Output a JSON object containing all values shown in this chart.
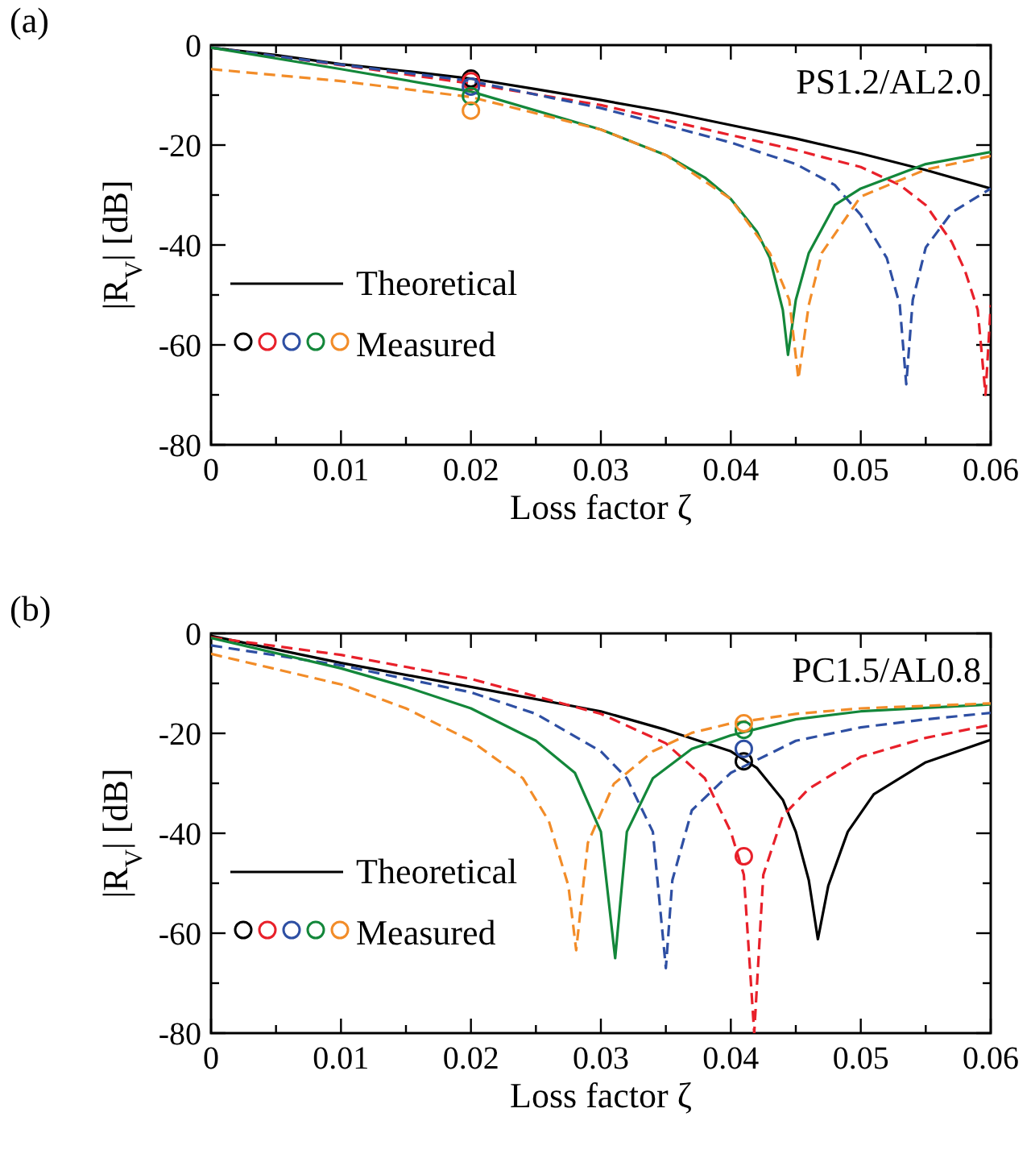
{
  "chart_data": [
    {
      "type": "line",
      "title": "(a)",
      "xlabel": "Loss factor ζ",
      "ylabel": "|R$_{V}$| [dB]",
      "annotations": [
        "PS1.2/AL2.0"
      ],
      "xlim": [
        0,
        0.06
      ],
      "ylim": [
        -80,
        0
      ],
      "xticks": [
        0,
        {
          "value": 0.005,
          "label": null
        },
        0.01,
        {
          "value": 0.015,
          "label": null
        },
        0.02,
        {
          "value": 0.025,
          "label": null
        },
        0.03,
        {
          "value": 0.035,
          "label": null
        },
        0.04,
        {
          "value": 0.045,
          "label": null
        },
        0.05,
        {
          "value": 0.055,
          "label": null
        },
        0.06
      ],
      "yticks": [
        -80,
        {
          "value": -70,
          "label": null
        },
        -60,
        {
          "value": -50,
          "label": null
        },
        -40,
        {
          "value": -30,
          "label": null
        },
        -20,
        {
          "value": -10,
          "label": null
        },
        0
      ],
      "grid": false,
      "legend": "bottom left",
      "series": [
        {
          "name": "Theoretical",
          "line_style": "solid",
          "color": "#000000",
          "x": [
            0,
            0.005,
            0.01,
            0.015,
            0.02,
            0.025,
            0.03,
            0.035,
            0.04,
            0.045,
            0.05,
            0.055,
            0.06
          ],
          "values": [
            -0.5,
            -2,
            -3.8,
            -5.2,
            -6.7,
            -8.8,
            -11,
            -13.3,
            -16,
            -18.7,
            -21.7,
            -25,
            -28.7
          ]
        },
        {
          "line_style": "dashed",
          "color": "#e8202a",
          "x": [
            0,
            0.01,
            0.02,
            0.03,
            0.04,
            0.045,
            0.05,
            0.053,
            0.055,
            0.057,
            0.058,
            0.059,
            0.0596,
            0.06
          ],
          "values": [
            -0.5,
            -4,
            -7.7,
            -12,
            -18,
            -21,
            -24.4,
            -28,
            -32,
            -39.4,
            -45,
            -53,
            -70,
            -52
          ]
        },
        {
          "line_style": "dashed",
          "color": "#2e4fa3",
          "x": [
            0,
            0.01,
            0.02,
            0.03,
            0.04,
            0.045,
            0.048,
            0.05,
            0.052,
            0.053,
            0.0535,
            0.054,
            0.055,
            0.057,
            0.06
          ],
          "values": [
            -0.5,
            -3.9,
            -7.2,
            -12.6,
            -19.5,
            -23.8,
            -28,
            -34,
            -42.6,
            -52,
            -67.9,
            -51,
            -40.5,
            -33.5,
            -28.7
          ]
        },
        {
          "line_style": "solid",
          "color": "#13873a",
          "x": [
            0,
            0.01,
            0.02,
            0.03,
            0.035,
            0.038,
            0.04,
            0.042,
            0.043,
            0.044,
            0.0444,
            0.045,
            0.046,
            0.048,
            0.05,
            0.055,
            0.06
          ],
          "values": [
            -0.5,
            -4.8,
            -9.3,
            -16.9,
            -22,
            -26.5,
            -30.8,
            -37.3,
            -42.6,
            -53,
            -62,
            -51,
            -41.6,
            -32,
            -28.7,
            -23.8,
            -21.4
          ]
        },
        {
          "line_style": "dashed",
          "color": "#f28c28",
          "x": [
            0,
            0.01,
            0.02,
            0.03,
            0.035,
            0.04,
            0.043,
            0.0445,
            0.0452,
            0.046,
            0.047,
            0.05,
            0.055,
            0.06
          ],
          "values": [
            -4.8,
            -7.2,
            -10.4,
            -16.9,
            -22,
            -30.8,
            -41.6,
            -51,
            -66.8,
            -52,
            -41.6,
            -30.3,
            -24.9,
            -22.2
          ]
        },
        {
          "name": "Measured",
          "type": "scatter",
          "marker": "circle",
          "colors": [
            "#000000",
            "#e8202a",
            "#2e4fa3",
            "#13873a",
            "#f28c28"
          ],
          "x": [
            0.02,
            0.02,
            0.02,
            0.02,
            0.02
          ],
          "values": [
            -6.7,
            -7.2,
            -8.3,
            -10.2,
            -13.1
          ]
        }
      ]
    },
    {
      "type": "line",
      "title": "(b)",
      "xlabel": "Loss factor ζ",
      "ylabel": "|R$_{V}$| [dB]",
      "annotations": [
        "PC1.5/AL0.8"
      ],
      "xlim": [
        0,
        0.06
      ],
      "ylim": [
        -80,
        0
      ],
      "xticks": [
        0,
        {
          "value": 0.005,
          "label": null
        },
        0.01,
        {
          "value": 0.015,
          "label": null
        },
        0.02,
        {
          "value": 0.025,
          "label": null
        },
        0.03,
        {
          "value": 0.035,
          "label": null
        },
        0.04,
        {
          "value": 0.045,
          "label": null
        },
        0.05,
        {
          "value": 0.055,
          "label": null
        },
        0.06
      ],
      "yticks": [
        -80,
        {
          "value": -70,
          "label": null
        },
        -60,
        {
          "value": -50,
          "label": null
        },
        -40,
        {
          "value": -30,
          "label": null
        },
        -20,
        {
          "value": -10,
          "label": null
        },
        0
      ],
      "grid": false,
      "legend": "bottom left",
      "series": [
        {
          "name": "Theoretical",
          "line_style": "solid",
          "color": "#000000",
          "x": [
            0,
            0.01,
            0.02,
            0.03,
            0.035,
            0.04,
            0.042,
            0.044,
            0.045,
            0.046,
            0.0467,
            0.0475,
            0.049,
            0.051,
            0.055,
            0.06
          ],
          "values": [
            -0.5,
            -5.9,
            -10.7,
            -15.6,
            -19.3,
            -23.6,
            -26.9,
            -33.3,
            -39.7,
            -49.4,
            -61.2,
            -50.5,
            -39.7,
            -32.2,
            -25.8,
            -21.3
          ]
        },
        {
          "line_style": "dashed",
          "color": "#e8202a",
          "x": [
            0,
            0.01,
            0.02,
            0.03,
            0.035,
            0.038,
            0.04,
            0.041,
            0.0418,
            0.0425,
            0.044,
            0.046,
            0.05,
            0.055,
            0.06
          ],
          "values": [
            -0.8,
            -4.3,
            -9.1,
            -16.1,
            -22,
            -29,
            -39.7,
            -48.3,
            -80,
            -48.3,
            -36.5,
            -31.1,
            -24.7,
            -20.9,
            -18.3
          ]
        },
        {
          "line_style": "dashed",
          "color": "#2e4fa3",
          "x": [
            0,
            0.01,
            0.02,
            0.025,
            0.03,
            0.032,
            0.034,
            0.035,
            0.0355,
            0.037,
            0.04,
            0.045,
            0.05,
            0.055,
            0.06
          ],
          "values": [
            -2.4,
            -6.4,
            -11.8,
            -16.1,
            -23.6,
            -29,
            -39.7,
            -67,
            -49.4,
            -35.4,
            -27.9,
            -21.5,
            -18.8,
            -17.2,
            -15.9
          ]
        },
        {
          "line_style": "solid",
          "color": "#13873a",
          "x": [
            0,
            0.01,
            0.015,
            0.02,
            0.025,
            0.028,
            0.03,
            0.0311,
            0.032,
            0.034,
            0.037,
            0.04,
            0.045,
            0.05,
            0.06
          ],
          "values": [
            -0.9,
            -7,
            -10.7,
            -15,
            -21.5,
            -27.9,
            -39.7,
            -65,
            -39.7,
            -29,
            -23.1,
            -20.4,
            -17.2,
            -15.6,
            -14.2
          ]
        },
        {
          "line_style": "dashed",
          "color": "#f28c28",
          "x": [
            0,
            0.01,
            0.015,
            0.02,
            0.024,
            0.026,
            0.0275,
            0.0281,
            0.029,
            0.031,
            0.034,
            0.037,
            0.04,
            0.045,
            0.05,
            0.06
          ],
          "values": [
            -4.1,
            -10.2,
            -15,
            -21.5,
            -29,
            -37.6,
            -50.5,
            -63.4,
            -41.9,
            -30.1,
            -23.6,
            -19.9,
            -18,
            -16.1,
            -15,
            -14
          ]
        },
        {
          "name": "Measured",
          "type": "scatter",
          "marker": "circle",
          "colors": [
            "#000000",
            "#e8202a",
            "#2e4fa3",
            "#13873a",
            "#f28c28"
          ],
          "x": [
            0.041,
            0.041,
            0.041,
            0.041,
            0.041
          ],
          "values": [
            -25.6,
            -44.6,
            -23.1,
            -19.3,
            -18
          ]
        }
      ]
    }
  ]
}
